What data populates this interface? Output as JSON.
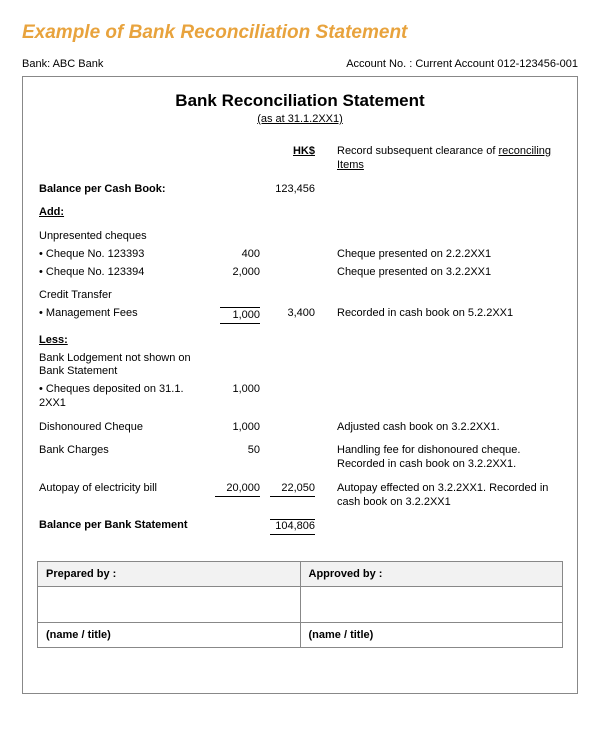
{
  "title": "Example of Bank Reconciliation Statement",
  "header": {
    "bank_label": "Bank:",
    "bank_name": "ABC Bank",
    "acct_label": "Account No. :",
    "acct_no": "Current Account 012-123456-001"
  },
  "statement": {
    "title": "Bank Reconciliation Statement",
    "date": "(as at 31.1.2XX1)",
    "currency_header": "HK$",
    "notes_header": "Record subsequent clearance of reconciling Items",
    "balance_cash_label": "Balance per Cash Book:",
    "balance_cash_value": "123,456",
    "add_label": "Add:",
    "unpresented_label": "Unpresented cheques",
    "cheque1_label": "• Cheque No. 123393",
    "cheque1_amt": "400",
    "cheque1_note": "Cheque presented on 2.2.2XX1",
    "cheque2_label": "• Cheque No. 123394",
    "cheque2_amt": "2,000",
    "cheque2_note": "Cheque presented on 3.2.2XX1",
    "credit_transfer_label": "Credit Transfer",
    "mgmt_fees_label": "• Management Fees",
    "mgmt_fees_amt": "1,000",
    "add_subtotal": "3,400",
    "mgmt_fees_note": "Recorded in cash book on 5.2.2XX1",
    "less_label": "Less:",
    "lodgement_label": "Bank Lodgement not shown on Bank Statement",
    "lodgement_item_label": "• Cheques deposited on 31.1. 2XX1",
    "lodgement_amt": "1,000",
    "dishonoured_label": "Dishonoured Cheque",
    "dishonoured_amt": "1,000",
    "dishonoured_note": "Adjusted cash book on 3.2.2XX1.",
    "charges_label": "Bank Charges",
    "charges_amt": "50",
    "charges_note": "Handling fee for dishonoured cheque. Recorded in cash book on 3.2.2XX1.",
    "autopay_label": "Autopay of electricity bill",
    "autopay_amt": "20,000",
    "less_subtotal": "22,050",
    "autopay_note": "Autopay effected on 3.2.2XX1. Recorded in cash book on 3.2.2XX1",
    "balance_bank_label": "Balance per Bank Statement",
    "balance_bank_value": "104,806"
  },
  "signatures": {
    "prepared_label": "Prepared by :",
    "approved_label": "Approved by :",
    "name_title": "(name / title)"
  },
  "colors": {
    "title": "#e8a33d",
    "border": "#888888",
    "text": "#000000",
    "sig_header_bg": "#f2f2f2"
  }
}
